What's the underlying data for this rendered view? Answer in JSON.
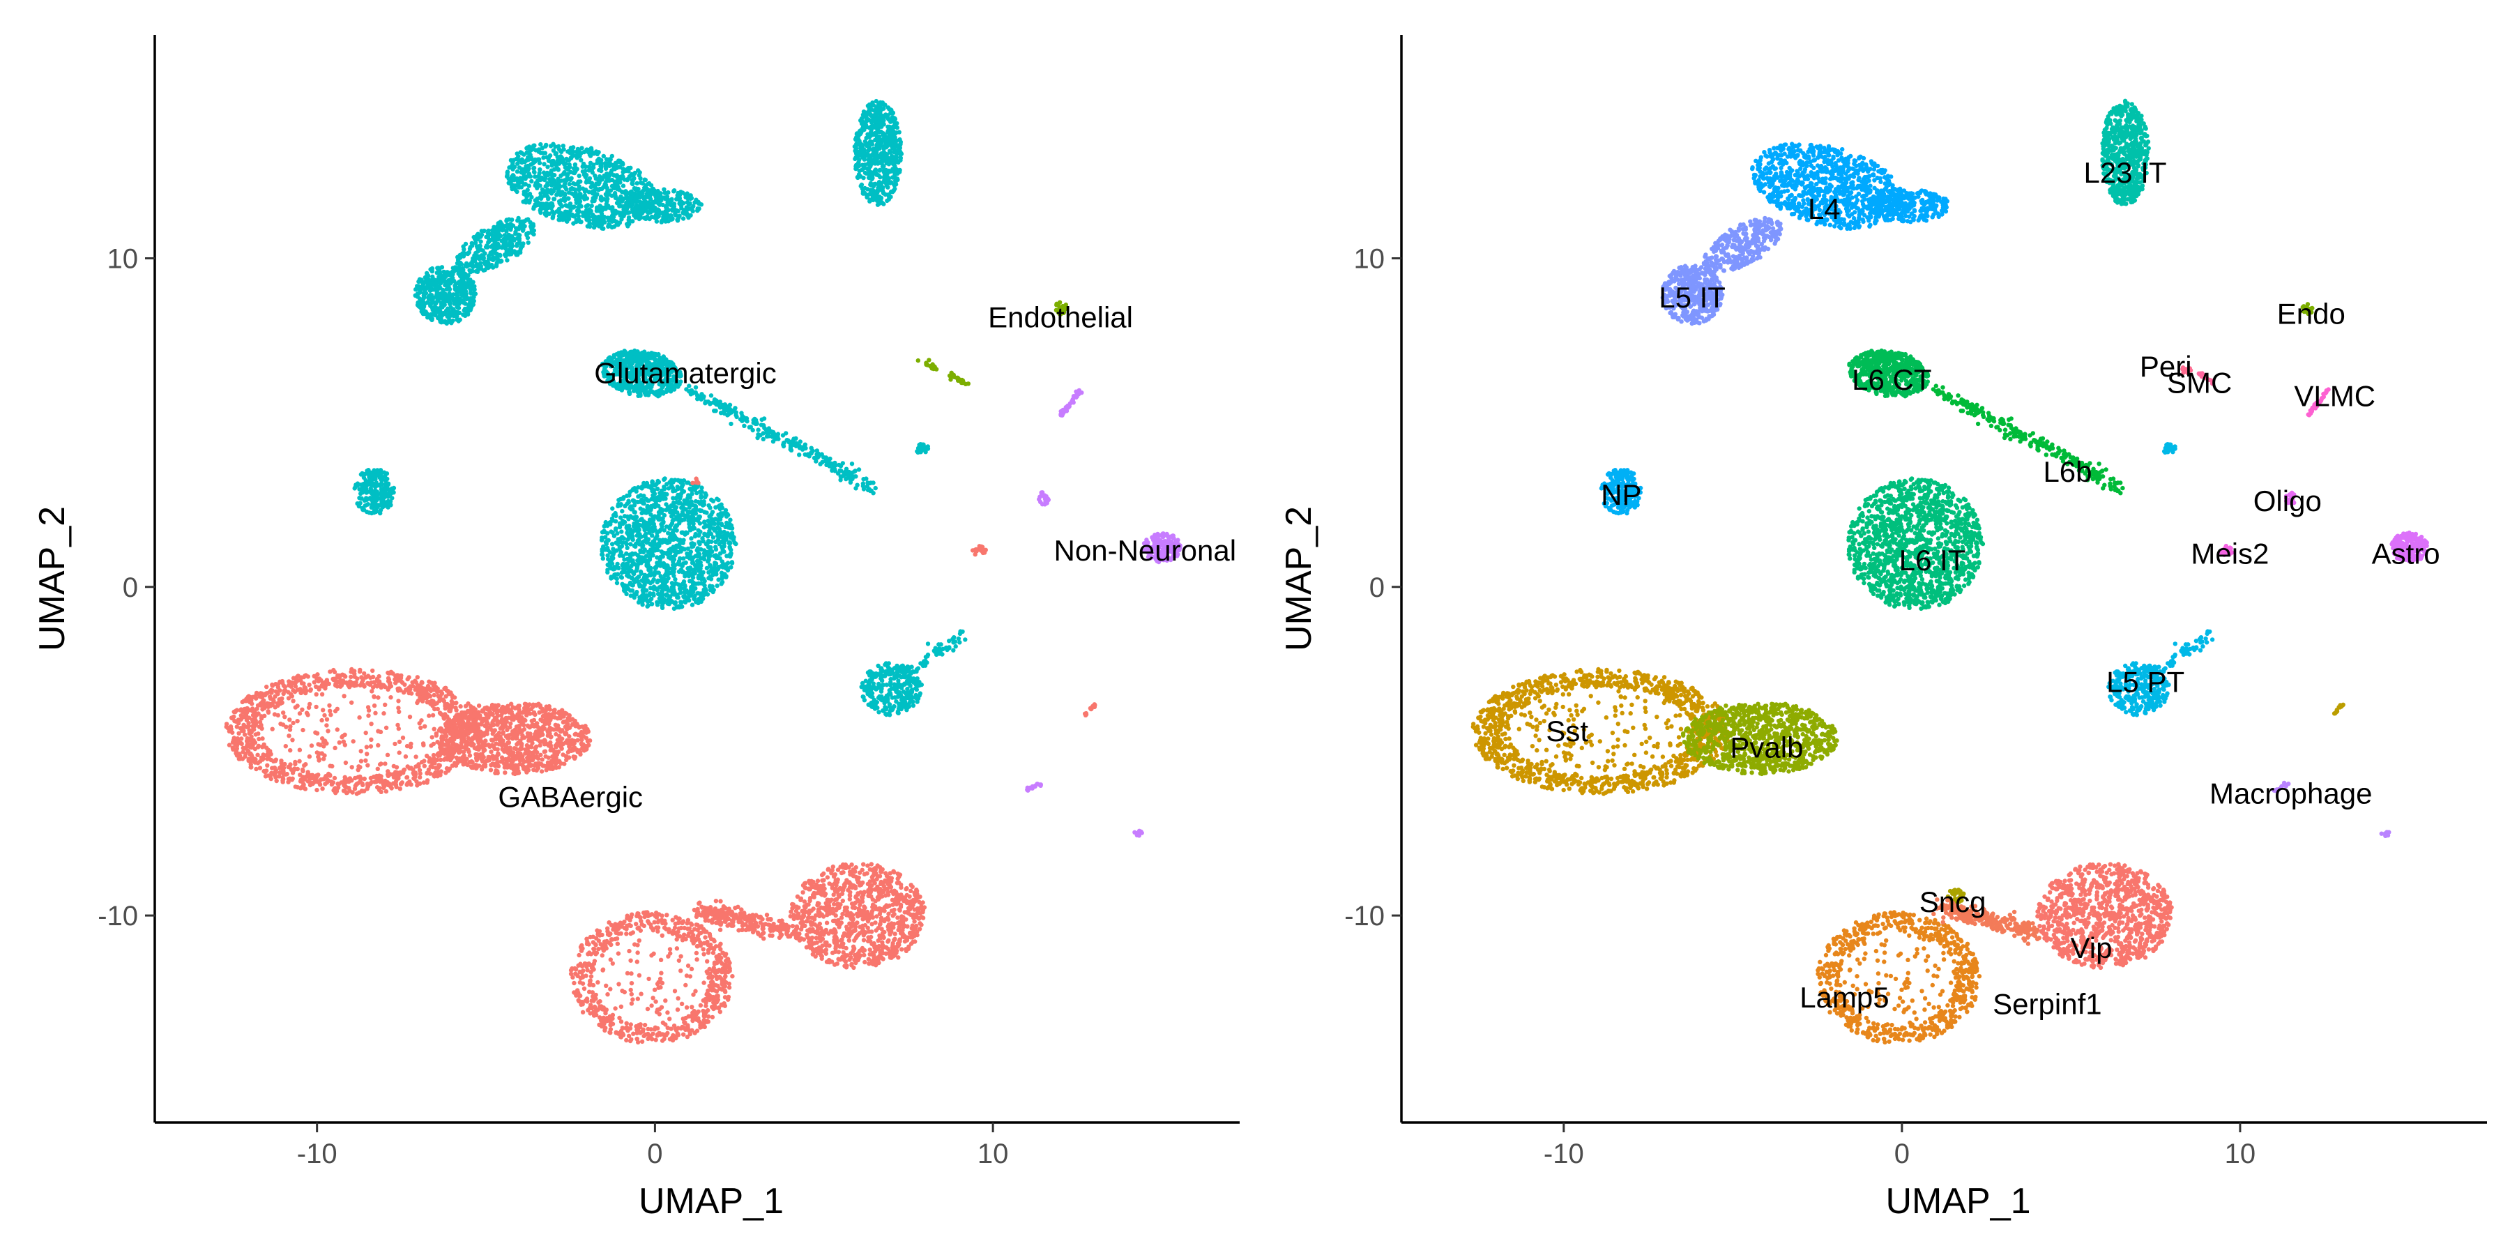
{
  "chart_data": [
    {
      "type": "scatter",
      "panel": "left",
      "xlabel": "UMAP_1",
      "ylabel": "UMAP_2",
      "xlim": [
        -14.8,
        17.3
      ],
      "ylim": [
        -16.3,
        16.8
      ],
      "xticks": [
        {
          "v": -10,
          "label": "-10"
        },
        {
          "v": 0,
          "label": "0"
        },
        {
          "v": 10,
          "label": "10"
        }
      ],
      "yticks": [
        {
          "v": 10,
          "label": "10"
        },
        {
          "v": 0,
          "label": "0"
        },
        {
          "v": -10,
          "label": "-10"
        }
      ],
      "grid": false,
      "legend": "none",
      "series": [
        {
          "name": "Glutamatergic",
          "color": "#00BFC4",
          "label_at": [
            0.9,
            6.5
          ],
          "clusters": [
            {
              "shape": "ellipse",
              "cx": -2.2,
              "cy": 12.2,
              "rx": 2.3,
              "ry": 1.2,
              "rot": -15,
              "n": 900
            },
            {
              "shape": "ellipse",
              "cx": 0.2,
              "cy": 11.6,
              "rx": 1.2,
              "ry": 0.5,
              "rot": 0,
              "n": 250
            },
            {
              "shape": "ellipse",
              "cx": -4.7,
              "cy": 10.4,
              "rx": 1.3,
              "ry": 0.6,
              "rot": 30,
              "n": 300
            },
            {
              "shape": "ellipse",
              "cx": -6.2,
              "cy": 8.9,
              "rx": 0.9,
              "ry": 0.9,
              "rot": 0,
              "n": 450
            },
            {
              "shape": "ellipse",
              "cx": 6.6,
              "cy": 13.2,
              "rx": 0.7,
              "ry": 1.6,
              "rot": 0,
              "n": 600
            },
            {
              "shape": "ellipse",
              "cx": -0.4,
              "cy": 6.5,
              "rx": 1.2,
              "ry": 0.7,
              "rot": -10,
              "n": 550
            },
            {
              "shape": "line",
              "x1": 1.0,
              "y1": 6.0,
              "x2": 6.5,
              "y2": 3.0,
              "w": 0.22,
              "n": 250
            },
            {
              "shape": "ellipse",
              "cx": -8.3,
              "cy": 2.9,
              "rx": 0.6,
              "ry": 0.7,
              "rot": 0,
              "n": 200
            },
            {
              "shape": "ellipse",
              "cx": 0.4,
              "cy": 1.3,
              "rx": 2.0,
              "ry": 2.0,
              "rot": 0,
              "n": 1300
            },
            {
              "shape": "ellipse",
              "cx": 7.0,
              "cy": -3.1,
              "rx": 0.9,
              "ry": 0.8,
              "rot": 0,
              "n": 300
            },
            {
              "shape": "line",
              "x1": 7.5,
              "y1": -2.6,
              "x2": 9.0,
              "y2": -1.5,
              "w": 0.18,
              "n": 60
            },
            {
              "shape": "ellipse",
              "cx": 7.9,
              "cy": 4.2,
              "rx": 0.2,
              "ry": 0.15,
              "rot": 0,
              "n": 25
            }
          ]
        },
        {
          "name": "GABAergic",
          "color": "#F8766D",
          "label_at": [
            -2.5,
            -6.4
          ],
          "clusters": [
            {
              "shape": "ring",
              "cx": -8.9,
              "cy": -4.4,
              "rx": 3.8,
              "ry": 1.9,
              "rot": 0,
              "n": 1200
            },
            {
              "shape": "ellipse",
              "cx": -4.2,
              "cy": -4.6,
              "rx": 2.3,
              "ry": 1.1,
              "rot": 0,
              "n": 900
            },
            {
              "shape": "ring",
              "cx": -0.1,
              "cy": -11.9,
              "rx": 2.4,
              "ry": 2.0,
              "rot": 0,
              "n": 700
            },
            {
              "shape": "line",
              "x1": 1.2,
              "y1": -9.8,
              "x2": 4.0,
              "y2": -10.5,
              "w": 0.3,
              "n": 250
            },
            {
              "shape": "ellipse",
              "cx": 6.0,
              "cy": -10.0,
              "rx": 2.0,
              "ry": 1.6,
              "rot": 0,
              "n": 900
            },
            {
              "shape": "ellipse",
              "cx": 9.6,
              "cy": 1.1,
              "rx": 0.2,
              "ry": 0.15,
              "rot": 0,
              "n": 20
            },
            {
              "shape": "ellipse",
              "cx": 1.2,
              "cy": 3.2,
              "rx": 0.1,
              "ry": 0.1,
              "rot": 0,
              "n": 5
            },
            {
              "shape": "line",
              "x1": 12.7,
              "y1": -3.9,
              "x2": 13.0,
              "y2": -3.6,
              "w": 0.05,
              "n": 15
            }
          ]
        },
        {
          "name": "Endothelial",
          "color": "#7CAE00",
          "label_at": [
            12.0,
            8.2
          ],
          "clusters": [
            {
              "shape": "line",
              "x1": 7.8,
              "y1": 6.9,
              "x2": 8.4,
              "y2": 6.6,
              "w": 0.06,
              "n": 15
            },
            {
              "shape": "line",
              "x1": 8.7,
              "y1": 6.5,
              "x2": 9.2,
              "y2": 6.2,
              "w": 0.08,
              "n": 25
            },
            {
              "shape": "ellipse",
              "cx": 12.0,
              "cy": 8.5,
              "rx": 0.2,
              "ry": 0.2,
              "rot": 0,
              "n": 20
            }
          ]
        },
        {
          "name": "Non-Neuronal",
          "color": "#C77CFF",
          "label_at": [
            14.5,
            1.1
          ],
          "clusters": [
            {
              "shape": "ellipse",
              "cx": 15.0,
              "cy": 1.2,
              "rx": 0.55,
              "ry": 0.45,
              "rot": 0,
              "n": 180
            },
            {
              "shape": "line",
              "x1": 12.0,
              "y1": 5.2,
              "x2": 12.6,
              "y2": 6.0,
              "w": 0.06,
              "n": 35
            },
            {
              "shape": "ellipse",
              "cx": 11.5,
              "cy": 2.7,
              "rx": 0.15,
              "ry": 0.2,
              "rot": 0,
              "n": 25
            },
            {
              "shape": "line",
              "x1": 11.0,
              "y1": -6.2,
              "x2": 11.4,
              "y2": -6.0,
              "w": 0.05,
              "n": 15
            },
            {
              "shape": "ellipse",
              "cx": 14.3,
              "cy": -7.5,
              "rx": 0.12,
              "ry": 0.08,
              "rot": 0,
              "n": 10
            }
          ]
        }
      ],
      "labels": [
        "Endothelial",
        "Glutamatergic",
        "Non-Neuronal",
        "GABAergic"
      ]
    },
    {
      "type": "scatter",
      "panel": "right",
      "xlabel": "UMAP_1",
      "ylabel": "UMAP_2",
      "xlim": [
        -14.8,
        17.3
      ],
      "ylim": [
        -16.3,
        16.8
      ],
      "xticks": [
        {
          "v": -10,
          "label": "-10"
        },
        {
          "v": 0,
          "label": "0"
        },
        {
          "v": 10,
          "label": "10"
        }
      ],
      "yticks": [
        {
          "v": 10,
          "label": "10"
        },
        {
          "v": 0,
          "label": "0"
        },
        {
          "v": -10,
          "label": "-10"
        }
      ],
      "grid": false,
      "legend": "none",
      "series": [
        {
          "name": "L23 IT",
          "color": "#00C1AA",
          "label_at": [
            6.6,
            12.6
          ],
          "clusters": [
            {
              "shape": "ellipse",
              "cx": 6.6,
              "cy": 13.2,
              "rx": 0.7,
              "ry": 1.6,
              "rot": 0,
              "n": 600
            }
          ]
        },
        {
          "name": "L4",
          "color": "#00A9FF",
          "label_at": [
            -2.3,
            11.5
          ],
          "clusters": [
            {
              "shape": "ellipse",
              "cx": -2.2,
              "cy": 12.2,
              "rx": 2.3,
              "ry": 1.2,
              "rot": -15,
              "n": 900
            },
            {
              "shape": "ellipse",
              "cx": 0.2,
              "cy": 11.6,
              "rx": 1.2,
              "ry": 0.5,
              "rot": 0,
              "n": 250
            }
          ]
        },
        {
          "name": "L5 IT",
          "color": "#7F96FF",
          "label_at": [
            -6.2,
            8.8
          ],
          "clusters": [
            {
              "shape": "ellipse",
              "cx": -4.7,
              "cy": 10.4,
              "rx": 1.3,
              "ry": 0.6,
              "rot": 30,
              "n": 300
            },
            {
              "shape": "ellipse",
              "cx": -6.2,
              "cy": 8.9,
              "rx": 0.9,
              "ry": 0.9,
              "rot": 0,
              "n": 450
            }
          ]
        },
        {
          "name": "L6 CT",
          "color": "#00BC56",
          "label_at": [
            -0.3,
            6.3
          ],
          "clusters": [
            {
              "shape": "ellipse",
              "cx": -0.4,
              "cy": 6.5,
              "rx": 1.2,
              "ry": 0.7,
              "rot": -10,
              "n": 550
            }
          ]
        },
        {
          "name": "L6b",
          "color": "#00BA38",
          "label_at": [
            4.9,
            3.5
          ],
          "clusters": [
            {
              "shape": "line",
              "x1": 1.0,
              "y1": 6.0,
              "x2": 6.5,
              "y2": 3.0,
              "w": 0.22,
              "n": 250
            }
          ]
        },
        {
          "name": "NP",
          "color": "#00B0F6",
          "label_at": [
            -8.3,
            2.8
          ],
          "clusters": [
            {
              "shape": "ellipse",
              "cx": -8.3,
              "cy": 2.9,
              "rx": 0.6,
              "ry": 0.7,
              "rot": 0,
              "n": 200
            }
          ]
        },
        {
          "name": "L6 IT",
          "color": "#00BF7D",
          "label_at": [
            0.9,
            0.8
          ],
          "clusters": [
            {
              "shape": "ellipse",
              "cx": 0.4,
              "cy": 1.3,
              "rx": 2.0,
              "ry": 2.0,
              "rot": 0,
              "n": 1300
            }
          ]
        },
        {
          "name": "L5 PT",
          "color": "#00B8E7",
          "label_at": [
            7.2,
            -2.9
          ],
          "clusters": [
            {
              "shape": "ellipse",
              "cx": 7.0,
              "cy": -3.1,
              "rx": 0.9,
              "ry": 0.8,
              "rot": 0,
              "n": 300
            },
            {
              "shape": "line",
              "x1": 7.5,
              "y1": -2.6,
              "x2": 9.0,
              "y2": -1.5,
              "w": 0.18,
              "n": 60
            },
            {
              "shape": "ellipse",
              "cx": 7.9,
              "cy": 4.2,
              "rx": 0.2,
              "ry": 0.15,
              "rot": 0,
              "n": 25
            }
          ]
        },
        {
          "name": "Sst",
          "color": "#CD9600",
          "label_at": [
            -9.9,
            -4.4
          ],
          "clusters": [
            {
              "shape": "ring",
              "cx": -8.9,
              "cy": -4.4,
              "rx": 3.8,
              "ry": 1.9,
              "rot": 0,
              "n": 1200
            }
          ]
        },
        {
          "name": "Pvalb",
          "color": "#8EAB00",
          "label_at": [
            -4.0,
            -4.9
          ],
          "clusters": [
            {
              "shape": "ellipse",
              "cx": -4.2,
              "cy": -4.6,
              "rx": 2.3,
              "ry": 1.1,
              "rot": 0,
              "n": 900
            }
          ]
        },
        {
          "name": "Sncg",
          "color": "#ABA300",
          "label_at": [
            1.5,
            -9.6
          ],
          "clusters": [
            {
              "shape": "ellipse",
              "cx": 1.6,
              "cy": -9.4,
              "rx": 0.25,
              "ry": 0.2,
              "rot": 0,
              "n": 40
            }
          ]
        },
        {
          "name": "Lamp5",
          "color": "#E7861B",
          "label_at": [
            -1.7,
            -12.5
          ],
          "clusters": [
            {
              "shape": "ring",
              "cx": -0.1,
              "cy": -11.9,
              "rx": 2.4,
              "ry": 2.0,
              "rot": 0,
              "n": 700
            }
          ]
        },
        {
          "name": "Serpinf1",
          "color": "#F37B59",
          "label_at": [
            4.3,
            -12.7
          ],
          "clusters": [
            {
              "shape": "line",
              "x1": 1.2,
              "y1": -9.8,
              "x2": 4.0,
              "y2": -10.5,
              "w": 0.3,
              "n": 250
            }
          ]
        },
        {
          "name": "Vip",
          "color": "#F8766D",
          "label_at": [
            5.6,
            -11.0
          ],
          "clusters": [
            {
              "shape": "ellipse",
              "cx": 6.0,
              "cy": -10.0,
              "rx": 2.0,
              "ry": 1.6,
              "rot": 0,
              "n": 900
            }
          ]
        },
        {
          "name": "Peri",
          "color": "#FF6C91",
          "label_at": [
            7.8,
            6.7
          ],
          "clusters": [
            {
              "shape": "ellipse",
              "cx": 8.4,
              "cy": 6.6,
              "rx": 0.15,
              "ry": 0.1,
              "rot": 0,
              "n": 10
            }
          ]
        },
        {
          "name": "SMC",
          "color": "#FF689F",
          "label_at": [
            8.8,
            6.2
          ],
          "clusters": [
            {
              "shape": "line",
              "x1": 8.8,
              "y1": 6.5,
              "x2": 9.2,
              "y2": 6.2,
              "w": 0.06,
              "n": 15
            }
          ]
        },
        {
          "name": "Endo",
          "color": "#7CAE00",
          "label_at": [
            12.1,
            8.3
          ],
          "clusters": [
            {
              "shape": "ellipse",
              "cx": 12.0,
              "cy": 8.5,
              "rx": 0.2,
              "ry": 0.2,
              "rot": 0,
              "n": 20
            }
          ]
        },
        {
          "name": "VLMC",
          "color": "#FD61D1",
          "label_at": [
            12.8,
            5.8
          ],
          "clusters": [
            {
              "shape": "line",
              "x1": 12.0,
              "y1": 5.2,
              "x2": 12.6,
              "y2": 6.0,
              "w": 0.06,
              "n": 35
            }
          ]
        },
        {
          "name": "Oligo",
          "color": "#E76BF3",
          "label_at": [
            11.4,
            2.6
          ],
          "clusters": [
            {
              "shape": "ellipse",
              "cx": 11.5,
              "cy": 2.7,
              "rx": 0.15,
              "ry": 0.2,
              "rot": 0,
              "n": 25
            }
          ]
        },
        {
          "name": "Meis2",
          "color": "#F564E3",
          "label_at": [
            9.7,
            1.0
          ],
          "clusters": [
            {
              "shape": "ellipse",
              "cx": 9.6,
              "cy": 1.1,
              "rx": 0.2,
              "ry": 0.15,
              "rot": 0,
              "n": 20
            }
          ]
        },
        {
          "name": "Astro",
          "color": "#DC71FA",
          "label_at": [
            14.9,
            1.0
          ],
          "clusters": [
            {
              "shape": "ellipse",
              "cx": 15.0,
              "cy": 1.2,
              "rx": 0.55,
              "ry": 0.45,
              "rot": 0,
              "n": 180
            }
          ]
        },
        {
          "name": "Macrophage",
          "color": "#B983FF",
          "label_at": [
            11.5,
            -6.3
          ],
          "clusters": [
            {
              "shape": "line",
              "x1": 11.0,
              "y1": -6.2,
              "x2": 11.4,
              "y2": -6.0,
              "w": 0.05,
              "n": 15
            },
            {
              "shape": "ellipse",
              "cx": 14.3,
              "cy": -7.5,
              "rx": 0.12,
              "ry": 0.08,
              "rot": 0,
              "n": 10
            }
          ]
        },
        {
          "name": "",
          "color": "#BB9D00",
          "clusters": [
            {
              "shape": "line",
              "x1": 12.7,
              "y1": -3.9,
              "x2": 13.0,
              "y2": -3.6,
              "w": 0.05,
              "n": 15
            }
          ]
        }
      ],
      "labels": [
        "L23 IT",
        "L4",
        "L5 IT",
        "Endo",
        "Peri",
        "SMC",
        "VLMC",
        "L6 CT",
        "L6b",
        "NP",
        "Oligo",
        "L6 IT",
        "Meis2",
        "Astro",
        "L5 PT",
        "Sst",
        "Pvalb",
        "Macrophage",
        "Sncg",
        "Vip",
        "Lamp5",
        "Serpinf1"
      ]
    }
  ]
}
